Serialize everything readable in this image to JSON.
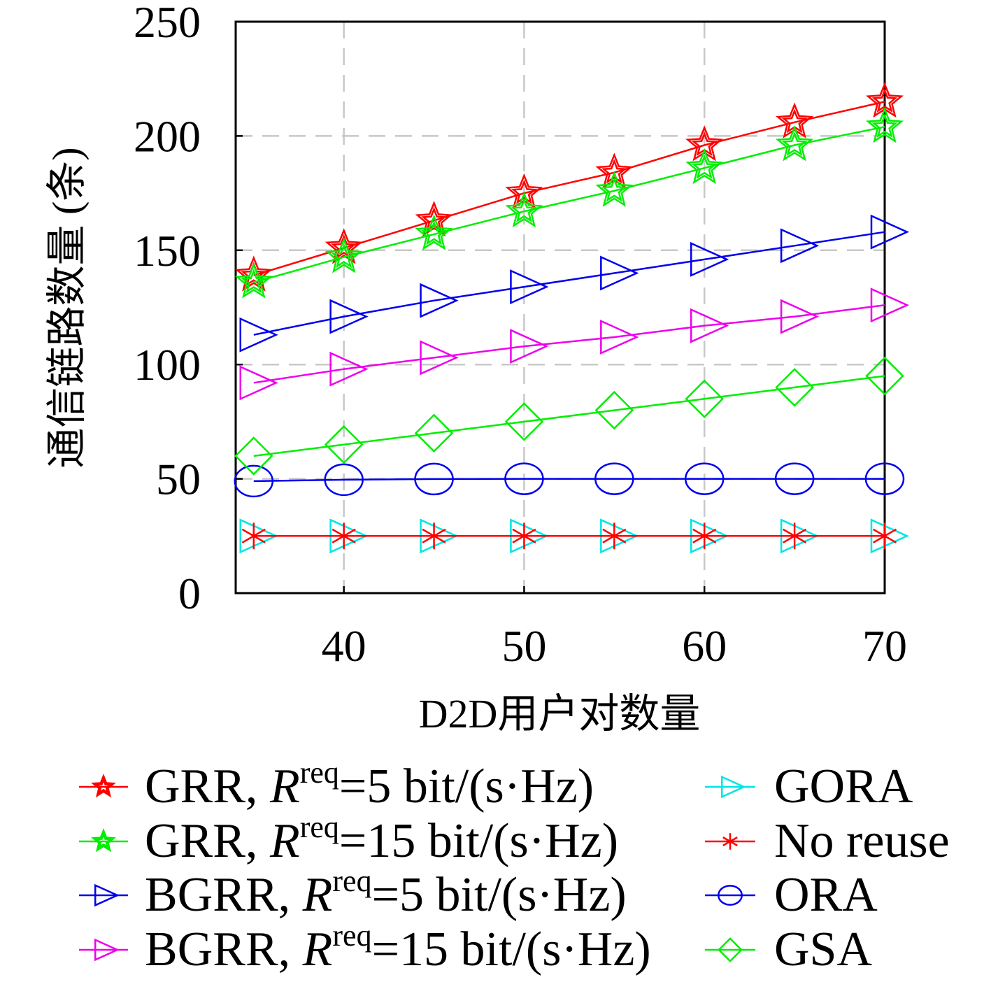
{
  "chart_data": {
    "type": "line",
    "x": [
      35,
      40,
      45,
      50,
      55,
      60,
      65,
      70
    ],
    "xlabel": "D2D用户对数量",
    "ylabel": "通信链路数量 (条)",
    "xlim": [
      34,
      70
    ],
    "ylim": [
      0,
      250
    ],
    "xticks": [
      40,
      50,
      60,
      70
    ],
    "yticks": [
      0,
      50,
      100,
      150,
      200,
      250
    ],
    "grid": true,
    "legend_position": "bottom",
    "legend_columns": 2,
    "series": [
      {
        "label": {
          "prefix": "GRR, ",
          "var": "R",
          "sup": "req",
          "suffix": "=5 bit/(s·Hz)"
        },
        "color": "#ff0000",
        "marker": "star",
        "values": [
          139,
          151,
          163,
          175,
          184,
          196,
          206,
          215
        ]
      },
      {
        "label": {
          "prefix": "GRR, ",
          "var": "R",
          "sup": "req",
          "suffix": "=15 bit/(s·Hz)"
        },
        "color": "#00ee00",
        "marker": "star",
        "values": [
          136,
          147,
          157,
          167,
          176,
          186,
          196,
          204
        ]
      },
      {
        "label": {
          "prefix": "BGRR, ",
          "var": "R",
          "sup": "req",
          "suffix": "=5 bit/(s·Hz)"
        },
        "color": "#0000ee",
        "marker": "triangle-right",
        "values": [
          113,
          121,
          128,
          134,
          140,
          146,
          152,
          158
        ]
      },
      {
        "label": {
          "prefix": "BGRR, ",
          "var": "R",
          "sup": "req",
          "suffix": "=15 bit/(s·Hz)"
        },
        "color": "#ee00ee",
        "marker": "triangle-right",
        "values": [
          92,
          98,
          103,
          108,
          112,
          117,
          121,
          126
        ]
      },
      {
        "label": {
          "prefix": "GORA"
        },
        "color": "#00e5e5",
        "marker": "triangle-right",
        "values": [
          25,
          25,
          25,
          25,
          25,
          25,
          25,
          25
        ]
      },
      {
        "label": {
          "prefix": "No reuse"
        },
        "color": "#ff0000",
        "marker": "asterisk",
        "values": [
          25,
          25,
          25,
          25,
          25,
          25,
          25,
          25
        ]
      },
      {
        "label": {
          "prefix": "ORA"
        },
        "color": "#0000ee",
        "marker": "circle",
        "values": [
          49,
          49.6,
          49.9,
          50,
          50,
          50,
          50,
          50
        ]
      },
      {
        "label": {
          "prefix": "GSA"
        },
        "color": "#00ee00",
        "marker": "diamond",
        "values": [
          60,
          65,
          70,
          75,
          80,
          85,
          90,
          95
        ]
      }
    ]
  }
}
